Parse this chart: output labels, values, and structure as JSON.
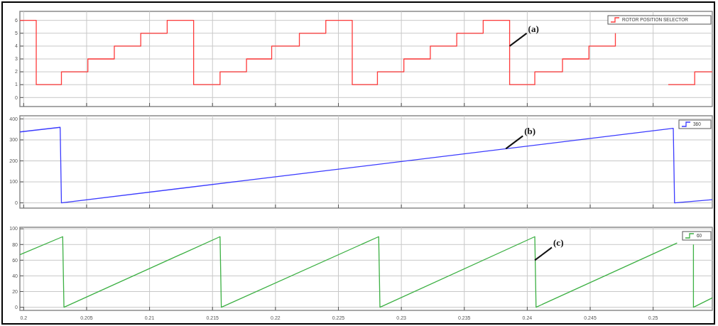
{
  "chart_data": [
    {
      "type": "step",
      "xlim": [
        0.1997,
        0.2547
      ],
      "xticks": [
        0.2,
        0.205,
        0.21,
        0.215,
        0.22,
        0.225,
        0.23,
        0.235,
        0.24,
        0.245,
        0.25
      ],
      "ylim": [
        -0.7,
        6.7
      ],
      "yticks": [
        0,
        1,
        2,
        3,
        4,
        5,
        6
      ],
      "grid": true,
      "legend": "top right",
      "tick_labels": "y",
      "annotations": [
        {
          "text": "(a)",
          "x": 0.2386,
          "y": 4
        }
      ],
      "series": [
        {
          "name": "ROTOR POSITION SELECTOR",
          "color": "#ff3b3b",
          "x": [
            0.1997,
            0.201,
            0.203,
            0.2051,
            0.2072,
            0.2093,
            0.2114,
            0.2135,
            0.2156,
            0.2177,
            0.2197,
            0.2219,
            0.224,
            0.2261,
            0.2281,
            0.2302,
            0.2323,
            0.2344,
            0.2365,
            0.2386,
            0.2406,
            0.2428,
            0.2449,
            0.247,
            0.2491,
            0.2512,
            0.2533,
            0.2547
          ],
          "values": [
            6,
            1,
            2,
            3,
            4,
            5,
            6,
            1,
            2,
            3,
            4,
            5,
            6,
            1,
            2,
            3,
            4,
            5,
            6,
            1,
            2,
            3,
            4,
            5,
            null,
            1,
            2,
            2
          ]
        }
      ]
    },
    {
      "type": "line",
      "xlim": [
        0.1997,
        0.2547
      ],
      "xticks": [
        0.2,
        0.205,
        0.21,
        0.215,
        0.22,
        0.225,
        0.23,
        0.235,
        0.24,
        0.245,
        0.25
      ],
      "ylim": [
        -25,
        415
      ],
      "yticks": [
        0,
        100,
        200,
        300,
        400
      ],
      "grid": true,
      "legend": "top right",
      "tick_labels": "y",
      "annotations": [
        {
          "text": "(b)",
          "x": 0.2383,
          "y": 258
        }
      ],
      "series": [
        {
          "name": "360",
          "color": "#3b3bff",
          "x": [
            0.1997,
            0.2029,
            0.203,
            0.2516,
            0.2517,
            0.2547
          ],
          "values": [
            338,
            360,
            0,
            355,
            0,
            15
          ]
        }
      ]
    },
    {
      "type": "line",
      "xlim": [
        0.1997,
        0.2547
      ],
      "xticks": [
        0.2,
        0.205,
        0.21,
        0.215,
        0.22,
        0.225,
        0.23,
        0.235,
        0.24,
        0.245,
        0.25
      ],
      "ylim": [
        -4,
        102
      ],
      "yticks": [
        0,
        20,
        40,
        60,
        80,
        100
      ],
      "grid": true,
      "legend": "top right",
      "annotations": [
        {
          "text": "(c)",
          "x": 0.2406,
          "y": 60
        }
      ],
      "series": [
        {
          "name": "60",
          "color": "#3cb043",
          "x": [
            0.1997,
            0.2031,
            0.2032,
            0.2156,
            0.2157,
            0.2282,
            0.2283,
            0.2406,
            0.2407,
            0.2519,
            0.2531,
            0.2532,
            0.2532,
            0.2547
          ],
          "values": [
            67,
            90,
            0,
            90,
            0,
            90,
            0,
            90,
            0,
            82,
            null,
            80,
            0,
            12
          ]
        }
      ]
    }
  ]
}
